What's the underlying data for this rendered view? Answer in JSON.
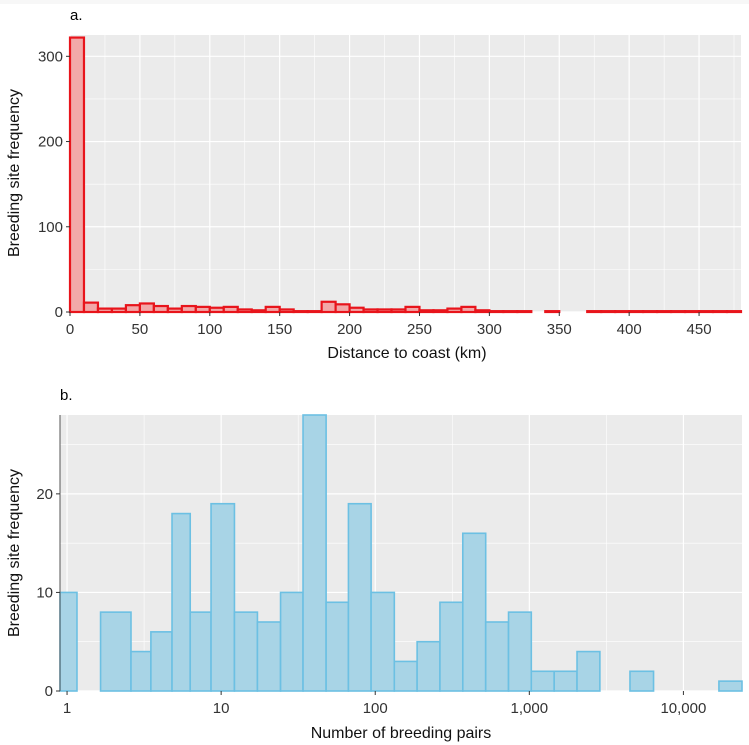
{
  "chart_data": [
    {
      "panel_label": "a.",
      "type": "bar",
      "title": "",
      "xlabel": "Distance to coast (km)",
      "ylabel": "Breeding site frequency",
      "xlim": [
        0,
        480
      ],
      "ylim": [
        0,
        325
      ],
      "bin_width": 10,
      "x_ticks": [
        0,
        50,
        100,
        150,
        200,
        250,
        300,
        350,
        400,
        450
      ],
      "x_tick_labels": [
        "0",
        "50",
        "100",
        "150",
        "200",
        "250",
        "300",
        "350",
        "400",
        "450"
      ],
      "y_ticks": [
        0,
        100,
        200,
        300
      ],
      "y_tick_labels": [
        "0",
        "100",
        "200",
        "300"
      ],
      "grid": true,
      "colors": {
        "fill": "#f2a8a8",
        "stroke": "#e8141b",
        "panel": "#ebebeb",
        "grid": "#ffffff"
      },
      "bin_starts": [
        0,
        10,
        20,
        30,
        40,
        50,
        60,
        70,
        80,
        90,
        100,
        110,
        120,
        130,
        140,
        150,
        160,
        170,
        180,
        190,
        200,
        210,
        220,
        230,
        240,
        250,
        260,
        270,
        280,
        290,
        300,
        310,
        320,
        330,
        340,
        350,
        360,
        370,
        380,
        390,
        400,
        410,
        420,
        430,
        440,
        450,
        460,
        470
      ],
      "counts": [
        322,
        11,
        4,
        4,
        8,
        10,
        7,
        4,
        7,
        6,
        5,
        6,
        3,
        2,
        6,
        3,
        1,
        1,
        12,
        9,
        5,
        3,
        3,
        3,
        6,
        2,
        2,
        4,
        6,
        2,
        1,
        1,
        1,
        0,
        1,
        0,
        0,
        1,
        1,
        1,
        1,
        1,
        1,
        1,
        1,
        1,
        1,
        1
      ]
    },
    {
      "panel_label": "b.",
      "type": "bar",
      "title": "",
      "xlabel": "Number of breeding pairs",
      "ylabel": "Breeding site frequency",
      "x_scale": "log10",
      "xlim": [
        0.9,
        24000
      ],
      "ylim": [
        0,
        28
      ],
      "x_ticks": [
        1,
        10,
        100,
        1000,
        10000
      ],
      "x_tick_labels": [
        "1",
        "10",
        "100",
        "1,000",
        "10,000"
      ],
      "y_ticks": [
        0,
        10,
        20
      ],
      "y_tick_labels": [
        "0",
        "10",
        "20"
      ],
      "grid": true,
      "colors": {
        "fill": "#a8d4e6",
        "stroke": "#6cc0e3",
        "panel": "#ebebeb",
        "grid": "#ffffff"
      },
      "bins": [
        {
          "lo": 0.9,
          "hi": 1.16,
          "count": 10
        },
        {
          "lo": 1.65,
          "hi": 2.6,
          "count": 8
        },
        {
          "lo": 2.6,
          "hi": 3.5,
          "count": 4
        },
        {
          "lo": 3.5,
          "hi": 4.8,
          "count": 6
        },
        {
          "lo": 4.8,
          "hi": 6.3,
          "count": 18
        },
        {
          "lo": 6.3,
          "hi": 8.6,
          "count": 8
        },
        {
          "lo": 8.6,
          "hi": 12.2,
          "count": 19
        },
        {
          "lo": 12.2,
          "hi": 17.2,
          "count": 8
        },
        {
          "lo": 17.2,
          "hi": 24.3,
          "count": 7
        },
        {
          "lo": 24.3,
          "hi": 34,
          "count": 10
        },
        {
          "lo": 34,
          "hi": 48,
          "count": 28
        },
        {
          "lo": 48,
          "hi": 67,
          "count": 9
        },
        {
          "lo": 67,
          "hi": 94,
          "count": 19
        },
        {
          "lo": 94,
          "hi": 133,
          "count": 10
        },
        {
          "lo": 133,
          "hi": 187,
          "count": 3
        },
        {
          "lo": 187,
          "hi": 263,
          "count": 5
        },
        {
          "lo": 263,
          "hi": 370,
          "count": 9
        },
        {
          "lo": 370,
          "hi": 521,
          "count": 16
        },
        {
          "lo": 521,
          "hi": 733,
          "count": 7
        },
        {
          "lo": 733,
          "hi": 1030,
          "count": 8
        },
        {
          "lo": 1030,
          "hi": 1450,
          "count": 2
        },
        {
          "lo": 1450,
          "hi": 2040,
          "count": 2
        },
        {
          "lo": 2040,
          "hi": 2870,
          "count": 4
        },
        {
          "lo": 4500,
          "hi": 6400,
          "count": 2
        },
        {
          "lo": 17000,
          "hi": 24000,
          "count": 1
        }
      ]
    }
  ]
}
